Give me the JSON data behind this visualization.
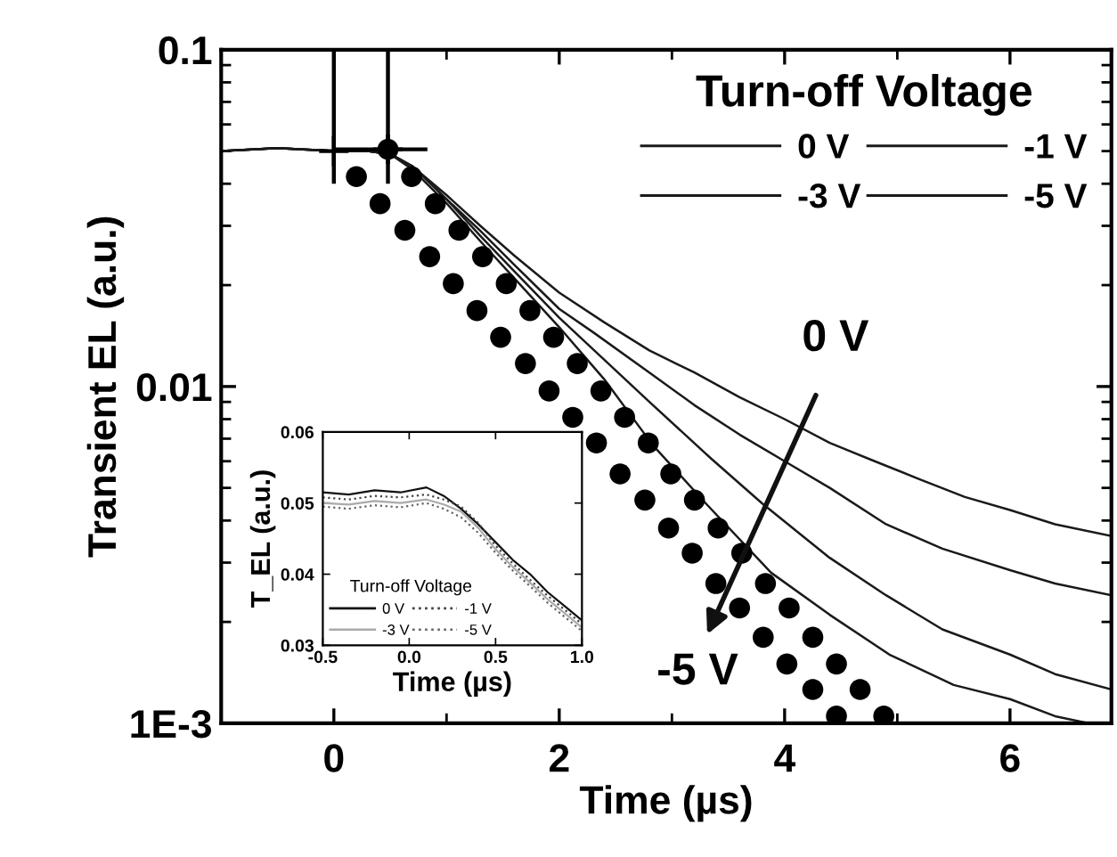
{
  "chart_data": [
    {
      "type": "line",
      "xlabel": "Time (µs)",
      "ylabel": "Transient EL (a.u.)",
      "log": "y",
      "legend": "top right",
      "legend_title": "Turn-off Voltage",
      "grid": false,
      "xlim": [
        -1,
        6.9
      ],
      "xticks": [
        0,
        2,
        4,
        6
      ],
      "ylim": [
        0.001,
        0.1
      ],
      "yticks": [
        0.1,
        0.01,
        {
          "value": 0.001,
          "label": "1E-3"
        }
      ],
      "series": [
        {
          "name": "0 V",
          "color": "#1a1a1a",
          "line_style": "solid",
          "marker": "none",
          "x": [
            -1.0,
            -0.5,
            0,
            0.3,
            0.5,
            0.7,
            1.0,
            1.3,
            1.6,
            2.0,
            2.4,
            2.8,
            3.2,
            3.6,
            4.0,
            4.4,
            4.8,
            5.2,
            5.6,
            6.0,
            6.4,
            6.9
          ],
          "values": [
            0.05,
            0.051,
            0.05,
            0.05,
            0.049,
            0.045,
            0.037,
            0.03,
            0.0245,
            0.019,
            0.0155,
            0.0128,
            0.011,
            0.0093,
            0.008,
            0.0068,
            0.006,
            0.0053,
            0.0047,
            0.0043,
            0.0039,
            0.0036
          ]
        },
        {
          "name": "-1 V",
          "color": "#1a1a1a",
          "line_style": "solid",
          "marker": "none",
          "x": [
            -1.0,
            -0.5,
            0,
            0.3,
            0.5,
            0.7,
            1.0,
            1.3,
            1.6,
            2.0,
            2.3,
            2.8,
            3.2,
            3.6,
            4.0,
            4.4,
            4.9,
            5.4,
            6.0,
            6.4,
            6.9
          ],
          "values": [
            0.05,
            0.051,
            0.05,
            0.05,
            0.049,
            0.045,
            0.036,
            0.029,
            0.023,
            0.017,
            0.0145,
            0.011,
            0.0088,
            0.0072,
            0.006,
            0.005,
            0.0039,
            0.0033,
            0.00285,
            0.0026,
            0.0024
          ]
        },
        {
          "name": "-3 V",
          "color": "#1a1a1a",
          "line_style": "solid",
          "marker": "none",
          "x": [
            -1.0,
            -0.5,
            0,
            0.3,
            0.5,
            0.7,
            1.0,
            1.3,
            1.6,
            2.0,
            2.4,
            2.8,
            3.35,
            3.8,
            4.4,
            4.9,
            5.4,
            6.0,
            6.4,
            6.9
          ],
          "values": [
            0.05,
            0.051,
            0.05,
            0.05,
            0.049,
            0.045,
            0.036,
            0.028,
            0.022,
            0.016,
            0.012,
            0.009,
            0.0061,
            0.0045,
            0.0031,
            0.0024,
            0.0019,
            0.0016,
            0.0014,
            0.00126
          ]
        },
        {
          "name": "-5 V",
          "color": "#1a1a1a",
          "line_style": "solid",
          "marker": "none",
          "x": [
            -1.0,
            -0.5,
            0,
            0.3,
            0.5,
            0.7,
            1.0,
            1.3,
            1.6,
            2.0,
            2.4,
            2.83,
            3.3,
            3.88,
            4.4,
            4.93,
            5.5,
            6.0,
            6.4,
            6.7
          ],
          "values": [
            0.05,
            0.051,
            0.05,
            0.05,
            0.049,
            0.044,
            0.035,
            0.027,
            0.021,
            0.015,
            0.0105,
            0.0067,
            0.0045,
            0.0028,
            0.0021,
            0.0016,
            0.0013,
            0.00118,
            0.00105,
            0.001
          ]
        },
        {
          "type": "scatter",
          "color": "#000000",
          "marker": "circle",
          "x": [
            0.2,
            0.41,
            0.63,
            0.85,
            1.06,
            1.27,
            1.48,
            1.7,
            1.91,
            2.12,
            2.33,
            2.54,
            2.76,
            2.97,
            3.18,
            3.39,
            3.6,
            3.81,
            4.02,
            4.25,
            4.46
          ],
          "values": [
            0.042,
            0.0349,
            0.0291,
            0.0243,
            0.0202,
            0.0168,
            0.014,
            0.0117,
            0.0097,
            0.0081,
            0.0068,
            0.0055,
            0.0046,
            0.0038,
            0.0032,
            0.0026,
            0.0022,
            0.0018,
            0.0015,
            0.00126,
            0.00105
          ]
        },
        {
          "type": "scatter",
          "color": "#000000",
          "marker": "circle",
          "x": [
            0.48,
            0.69,
            0.9,
            1.11,
            1.32,
            1.53,
            1.74,
            1.95,
            2.16,
            2.37,
            2.58,
            2.79,
            2.99,
            3.2,
            3.41,
            3.62,
            3.83,
            4.04,
            4.25,
            4.46,
            4.67,
            4.88
          ],
          "values": [
            0.0506,
            0.042,
            0.0349,
            0.0291,
            0.0243,
            0.0202,
            0.0168,
            0.014,
            0.0117,
            0.0097,
            0.0081,
            0.0068,
            0.0055,
            0.0046,
            0.0038,
            0.0032,
            0.0026,
            0.0022,
            0.0018,
            0.0015,
            0.00126,
            0.00105
          ]
        },
        {
          "type": "scatter",
          "color": "#000000",
          "marker": "cross",
          "x": [
            0,
            0.48
          ],
          "values": [
            0.05,
            0.0506
          ],
          "errors": [
            [
              0.04,
              0.1
            ],
            [
              0.04,
              0.1
            ]
          ],
          "xerrors": [
            null,
            [
              0,
              0.83
            ]
          ]
        }
      ],
      "annotations": [
        "0 V",
        "-5 V"
      ]
    },
    {
      "type": "line",
      "xlabel": "Time (µs)",
      "ylabel": "T_EL (a.u.)",
      "legend": "bottom left",
      "legend_title": "Turn-off Voltage",
      "grid": false,
      "xlim": [
        -0.5,
        1.0
      ],
      "xticks": [
        {
          "value": -0.5,
          "label": "-0.5"
        },
        {
          "value": 0.0,
          "label": "0.0"
        },
        {
          "value": 0.5,
          "label": "0.5"
        },
        {
          "value": 1.0,
          "label": "1.0"
        }
      ],
      "ylim": [
        0.03,
        0.06
      ],
      "yticks": [
        {
          "value": 0.03,
          "label": "0.03"
        },
        {
          "value": 0.04,
          "label": "0.04"
        },
        {
          "value": 0.05,
          "label": "0.05"
        },
        {
          "value": 0.06,
          "label": "0.06"
        }
      ],
      "series": [
        {
          "name": "0 V",
          "color": "#111111",
          "line_style": "solid",
          "marker": "none",
          "x": [
            -0.5,
            -0.35,
            -0.2,
            -0.05,
            0.1,
            0.2,
            0.3,
            0.4,
            0.5,
            0.6,
            0.7,
            0.8,
            0.9,
            1.0
          ],
          "values": [
            0.0515,
            0.0512,
            0.0518,
            0.0515,
            0.0522,
            0.051,
            0.0492,
            0.047,
            0.0445,
            0.042,
            0.04,
            0.0375,
            0.0355,
            0.0335
          ]
        },
        {
          "name": "-1 V",
          "color": "#444444",
          "line_style": "dotted",
          "marker": "none",
          "x": [
            -0.5,
            -0.35,
            -0.2,
            -0.05,
            0.1,
            0.2,
            0.3,
            0.4,
            0.5,
            0.6,
            0.7,
            0.8,
            0.9,
            1.0
          ],
          "values": [
            0.0508,
            0.0505,
            0.051,
            0.0508,
            0.0512,
            0.0505,
            0.0495,
            0.0472,
            0.044,
            0.0415,
            0.0392,
            0.037,
            0.035,
            0.033
          ]
        },
        {
          "name": "-3 V",
          "color": "#aaaaaa",
          "line_style": "solid",
          "marker": "none",
          "x": [
            -0.5,
            -0.35,
            -0.2,
            -0.05,
            0.1,
            0.2,
            0.3,
            0.4,
            0.5,
            0.6,
            0.7,
            0.8,
            0.9,
            1.0
          ],
          "values": [
            0.05,
            0.0498,
            0.0503,
            0.05,
            0.0505,
            0.0498,
            0.0488,
            0.0465,
            0.0435,
            0.041,
            0.0388,
            0.0365,
            0.0345,
            0.0325
          ]
        },
        {
          "name": "-5 V",
          "color": "#666666",
          "line_style": "dotted",
          "marker": "none",
          "x": [
            -0.5,
            -0.35,
            -0.2,
            -0.05,
            0.1,
            0.2,
            0.3,
            0.4,
            0.5,
            0.6,
            0.7,
            0.8,
            0.9,
            1.0
          ],
          "values": [
            0.0495,
            0.0492,
            0.0497,
            0.0494,
            0.05,
            0.0492,
            0.048,
            0.0458,
            0.043,
            0.0405,
            0.0383,
            0.036,
            0.034,
            0.032
          ]
        }
      ]
    }
  ]
}
